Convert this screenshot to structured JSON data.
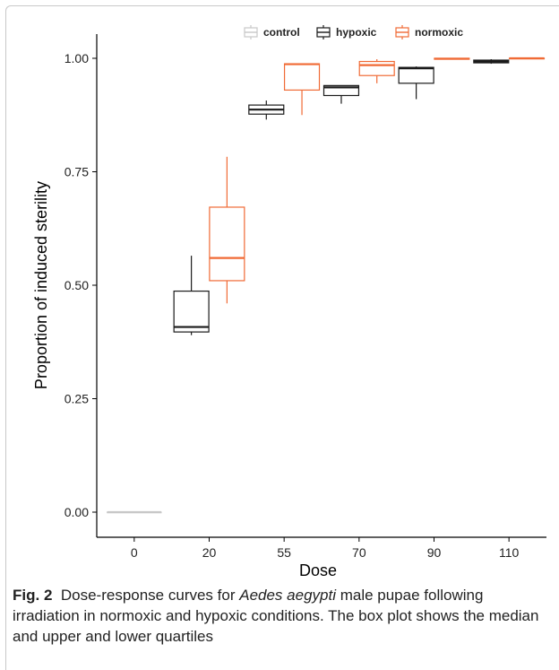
{
  "chart_data": {
    "type": "box",
    "xlabel": "Dose",
    "ylabel": "Proportion of induced sterility",
    "categories": [
      "0",
      "20",
      "55",
      "70",
      "90",
      "110"
    ],
    "yticks": [
      "0.00",
      "0.25",
      "0.50",
      "0.75",
      "1.00"
    ],
    "ylim": [
      -0.05,
      1.05
    ],
    "legend_position": "top",
    "series": [
      {
        "name": "control",
        "color": "#c8c8c8",
        "boxes": [
          {
            "cat": "0",
            "min": 0.0,
            "q1": 0.0,
            "median": 0.0,
            "q3": 0.0,
            "max": 0.0
          }
        ]
      },
      {
        "name": "hypoxic",
        "color": "#1a1a1a",
        "boxes": [
          {
            "cat": "20",
            "min": 0.39,
            "q1": 0.397,
            "median": 0.408,
            "q3": 0.487,
            "max": 0.565
          },
          {
            "cat": "55",
            "min": 0.865,
            "q1": 0.877,
            "median": 0.887,
            "q3": 0.897,
            "max": 0.907
          },
          {
            "cat": "70",
            "min": 0.9,
            "q1": 0.918,
            "median": 0.936,
            "q3": 0.94,
            "max": 0.94
          },
          {
            "cat": "90",
            "min": 0.91,
            "q1": 0.945,
            "median": 0.978,
            "q3": 0.98,
            "max": 0.982
          },
          {
            "cat": "110",
            "min": 0.988,
            "q1": 0.99,
            "median": 0.993,
            "q3": 0.996,
            "max": 0.998
          }
        ]
      },
      {
        "name": "normoxic",
        "color": "#f06a35",
        "boxes": [
          {
            "cat": "20",
            "min": 0.46,
            "q1": 0.51,
            "median": 0.56,
            "q3": 0.672,
            "max": 0.783
          },
          {
            "cat": "55",
            "min": 0.875,
            "q1": 0.93,
            "median": 0.987,
            "q3": 0.988,
            "max": 0.988
          },
          {
            "cat": "70",
            "min": 0.945,
            "q1": 0.962,
            "median": 0.985,
            "q3": 0.993,
            "max": 0.998
          },
          {
            "cat": "90",
            "min": 0.997,
            "q1": 0.998,
            "median": 0.999,
            "q3": 1.0,
            "max": 1.0
          },
          {
            "cat": "110",
            "min": 0.998,
            "q1": 0.999,
            "median": 1.0,
            "q3": 1.0,
            "max": 1.0
          }
        ]
      }
    ]
  },
  "caption": {
    "label": "Fig. 2",
    "text_before": "Dose-response curves for ",
    "species": "Aedes aegypti",
    "text_after": " male pupae following irradiation in normoxic and hypoxic conditions. The box plot shows the median and upper and lower quartiles"
  }
}
